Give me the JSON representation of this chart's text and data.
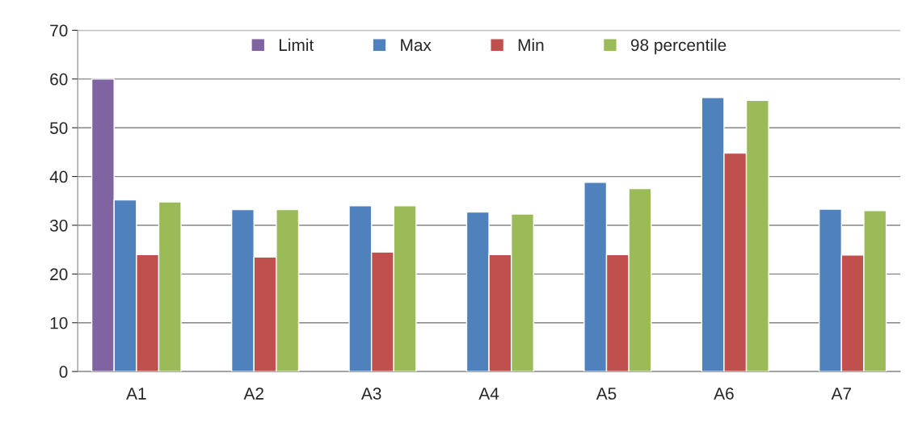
{
  "chart_data": {
    "type": "bar",
    "categories": [
      "A1",
      "A2",
      "A3",
      "A4",
      "A5",
      "A6",
      "A7"
    ],
    "series": [
      {
        "name": "Limit",
        "color": "#8064a2",
        "values": [
          60,
          null,
          null,
          null,
          null,
          null,
          null
        ]
      },
      {
        "name": "Max",
        "color": "#4f81bd",
        "values": [
          35.2,
          33.2,
          34.0,
          32.7,
          38.8,
          56.2,
          33.3
        ]
      },
      {
        "name": "Min",
        "color": "#c0504d",
        "values": [
          24.0,
          23.5,
          24.5,
          24.0,
          24.0,
          44.8,
          23.9
        ]
      },
      {
        "name": "98 percentile",
        "color": "#9bbb59",
        "values": [
          34.8,
          33.2,
          34.0,
          32.3,
          37.5,
          55.6,
          33.0
        ]
      }
    ],
    "ylim": [
      0,
      70
    ],
    "yticks": [
      0,
      10,
      20,
      30,
      40,
      50,
      60,
      70
    ],
    "grid": "y",
    "legend": "top"
  }
}
